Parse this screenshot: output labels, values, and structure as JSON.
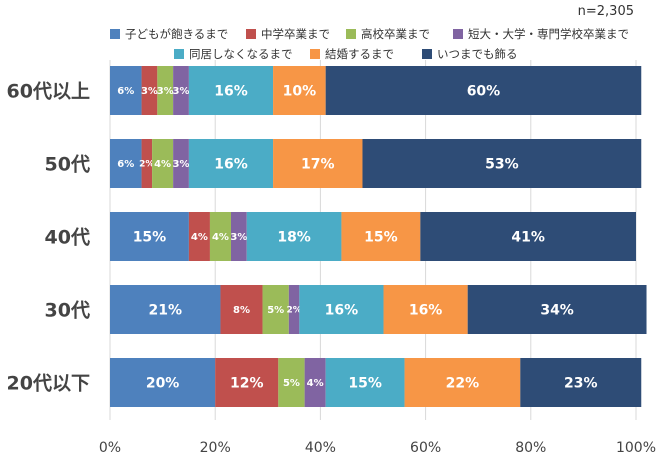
{
  "n_label": "n=2,305",
  "chart_data": {
    "type": "bar",
    "orientation": "horizontal",
    "stacked": true,
    "percent": true,
    "categories": [
      "60代以上",
      "50代",
      "40代",
      "30代",
      "20代以下"
    ],
    "series": [
      {
        "name": "子どもが飽きるまで",
        "color": "#4e81bd",
        "values": [
          6,
          6,
          15,
          21,
          20
        ]
      },
      {
        "name": "中学卒業まで",
        "color": "#c0504d",
        "values": [
          3,
          2,
          4,
          8,
          12
        ]
      },
      {
        "name": "高校卒業まで",
        "color": "#9bbb59",
        "values": [
          3,
          4,
          4,
          5,
          5
        ]
      },
      {
        "name": "短大・大学・専門学校卒業まで",
        "color": "#8064a2",
        "values": [
          3,
          3,
          3,
          2,
          4
        ]
      },
      {
        "name": "同居しなくなるまで",
        "color": "#4bacc6",
        "values": [
          16,
          16,
          18,
          16,
          15
        ]
      },
      {
        "name": "結婚するまで",
        "color": "#f79646",
        "values": [
          10,
          17,
          15,
          16,
          22
        ]
      },
      {
        "name": "いつまでも飾る",
        "color": "#2e4c76",
        "values": [
          60,
          53,
          41,
          34,
          23
        ]
      }
    ],
    "xlim": [
      0,
      100
    ],
    "xticks": [
      "0%",
      "20%",
      "40%",
      "60%",
      "80%",
      "100%"
    ],
    "value_suffix": "%",
    "legend_position": "top"
  }
}
